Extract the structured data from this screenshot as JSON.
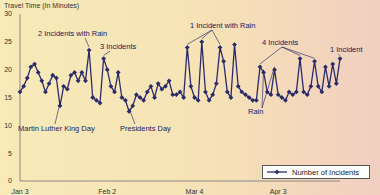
{
  "chart_data": {
    "type": "line",
    "y_label": "Travel Time (In Minutes)",
    "categories": [
      "Jan 3",
      null,
      null,
      null,
      null,
      null,
      null,
      null,
      null,
      null,
      null,
      null,
      null,
      null,
      null,
      null,
      null,
      null,
      null,
      null,
      null,
      null,
      null,
      null,
      "Feb 2",
      null,
      null,
      null,
      null,
      null,
      null,
      null,
      null,
      null,
      null,
      null,
      null,
      null,
      null,
      null,
      null,
      null,
      null,
      null,
      null,
      null,
      null,
      null,
      "Mar 4",
      null,
      null,
      null,
      null,
      null,
      null,
      null,
      null,
      null,
      null,
      null,
      null,
      null,
      null,
      null,
      null,
      null,
      null,
      null,
      null,
      null,
      null,
      "Apr 3",
      null,
      null,
      null,
      null,
      null,
      null,
      null,
      null,
      null,
      null,
      null,
      null,
      null,
      null,
      null,
      null,
      null
    ],
    "series": [
      {
        "name": "Number of Incidents",
        "color": "#2b2b6b",
        "marker": "diamond",
        "values": [
          16,
          17,
          18.5,
          20.5,
          21,
          19.5,
          18,
          16,
          17.5,
          19,
          18.5,
          13.5,
          17,
          16.5,
          19,
          19.5,
          18,
          19.5,
          18,
          23.5,
          15,
          14.5,
          14,
          22,
          20,
          17,
          16,
          19.5,
          15,
          14.5,
          12.5,
          13.5,
          15.5,
          15,
          14.5,
          16,
          17,
          15,
          17.5,
          16.5,
          17,
          18,
          15.5,
          15.5,
          16,
          15,
          24,
          17,
          15,
          14.5,
          25,
          16,
          14.5,
          15.5,
          17.5,
          24,
          21.5,
          16,
          15,
          24.5,
          17,
          16,
          15.5,
          15,
          14.5,
          14.5,
          20.5,
          19.5,
          16,
          15.5,
          20,
          15.5,
          15,
          14.5,
          16,
          15.5,
          16,
          22,
          16,
          15.5,
          17,
          21.5,
          17,
          16,
          20.5,
          17,
          21,
          17.5,
          22
        ]
      }
    ],
    "ylim": [
      0,
      30
    ],
    "yticks": [
      0,
      5,
      10,
      15,
      20,
      25,
      30
    ],
    "grid": false,
    "annotations": [
      "2 Incidents with Rain",
      "3 Incidents",
      "Martin Luther King Day",
      "Presidents Day",
      "1 Incident with Rain",
      "4 Incidents",
      "Rain",
      "1 Incident"
    ]
  }
}
